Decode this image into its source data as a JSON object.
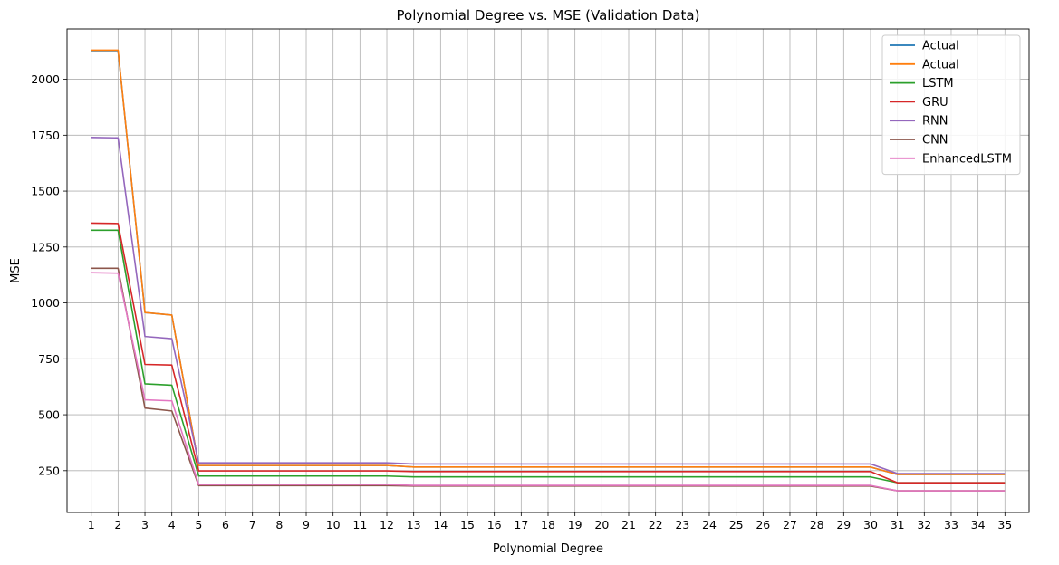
{
  "chart_data": {
    "type": "line",
    "title": "Polynomial Degree vs. MSE (Validation Data)",
    "xlabel": "Polynomial Degree",
    "ylabel": "MSE",
    "x": [
      1,
      2,
      3,
      4,
      5,
      6,
      7,
      8,
      9,
      10,
      11,
      12,
      13,
      14,
      15,
      16,
      17,
      18,
      19,
      20,
      21,
      22,
      23,
      24,
      25,
      26,
      27,
      28,
      29,
      30,
      31,
      32,
      33,
      34,
      35
    ],
    "xlim": [
      0.1,
      35.9
    ],
    "ylim": [
      63,
      2225
    ],
    "yticks": [
      250,
      500,
      750,
      1000,
      1250,
      1500,
      1750,
      2000
    ],
    "grid": true,
    "legend_position": "top-right",
    "series": [
      {
        "name": "Actual",
        "color": "#1f77b4",
        "values": [
          2128,
          2128,
          957,
          946,
          273,
          273,
          273,
          273,
          273,
          273,
          273,
          273,
          266,
          266,
          266,
          266,
          266,
          266,
          266,
          266,
          266,
          266,
          266,
          266,
          266,
          266,
          266,
          266,
          266,
          266,
          233,
          233,
          233,
          233,
          233
        ]
      },
      {
        "name": "Actual",
        "color": "#ff7f0e",
        "values": [
          2130,
          2130,
          957,
          946,
          273,
          273,
          273,
          273,
          273,
          273,
          273,
          273,
          266,
          266,
          266,
          266,
          266,
          266,
          266,
          266,
          266,
          266,
          266,
          266,
          266,
          266,
          266,
          266,
          266,
          266,
          233,
          233,
          233,
          233,
          233
        ]
      },
      {
        "name": "LSTM",
        "color": "#2ca02c",
        "values": [
          1325,
          1325,
          638,
          632,
          226,
          226,
          226,
          226,
          226,
          226,
          226,
          226,
          222,
          222,
          222,
          222,
          222,
          222,
          222,
          222,
          222,
          222,
          222,
          222,
          222,
          222,
          222,
          222,
          222,
          222,
          196,
          196,
          196,
          196,
          196
        ]
      },
      {
        "name": "GRU",
        "color": "#d62728",
        "values": [
          1357,
          1355,
          725,
          722,
          249,
          249,
          249,
          249,
          249,
          249,
          249,
          249,
          246,
          246,
          246,
          246,
          246,
          246,
          246,
          246,
          246,
          246,
          246,
          246,
          246,
          246,
          246,
          246,
          246,
          246,
          196,
          196,
          196,
          196,
          196
        ]
      },
      {
        "name": "RNN",
        "color": "#9467bd",
        "values": [
          1740,
          1738,
          850,
          840,
          285,
          285,
          285,
          285,
          285,
          285,
          285,
          285,
          280,
          280,
          280,
          280,
          280,
          280,
          280,
          280,
          280,
          280,
          280,
          280,
          280,
          280,
          280,
          280,
          280,
          280,
          237,
          237,
          237,
          237,
          237
        ]
      },
      {
        "name": "CNN",
        "color": "#8c564b",
        "values": [
          1155,
          1155,
          530,
          517,
          183,
          183,
          183,
          183,
          183,
          183,
          183,
          183,
          181,
          181,
          181,
          181,
          181,
          181,
          181,
          181,
          181,
          181,
          181,
          181,
          181,
          181,
          181,
          181,
          181,
          181,
          160,
          160,
          160,
          160,
          160
        ]
      },
      {
        "name": "EnhancedLSTM",
        "color": "#e377c2",
        "values": [
          1135,
          1133,
          567,
          562,
          188,
          188,
          188,
          188,
          188,
          188,
          188,
          188,
          184,
          184,
          184,
          184,
          184,
          184,
          184,
          184,
          184,
          184,
          184,
          184,
          184,
          184,
          184,
          184,
          184,
          184,
          160,
          160,
          160,
          160,
          160
        ]
      }
    ]
  }
}
